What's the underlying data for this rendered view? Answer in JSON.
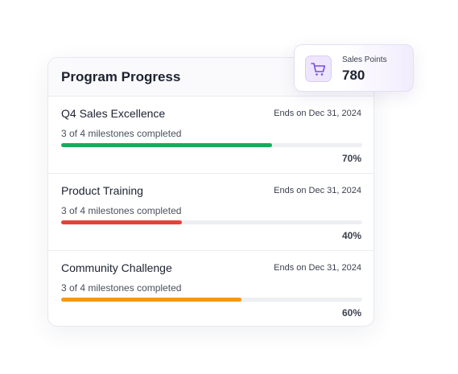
{
  "header": {
    "title": "Program Progress"
  },
  "badge": {
    "label": "Sales Points",
    "value": 780
  },
  "programs": [
    {
      "name": "Q4 Sales Excellence",
      "ends": "Ends on Dec 31, 2024",
      "milestones": "3 of 4 milestones completed",
      "value": 70,
      "value_label": "70%",
      "color": "#1aaa5b"
    },
    {
      "name": "Product Training",
      "ends": "Ends on Dec 31, 2024",
      "milestones": "3 of 4 milestones completed",
      "value": 40,
      "value_label": "40%",
      "color": "#e5413a"
    },
    {
      "name": "Community Challenge",
      "ends": "Ends on Dec 31, 2024",
      "milestones": "3 of 4 milestones completed",
      "value": 60,
      "value_label": "60%",
      "color": "#f59617"
    }
  ]
}
